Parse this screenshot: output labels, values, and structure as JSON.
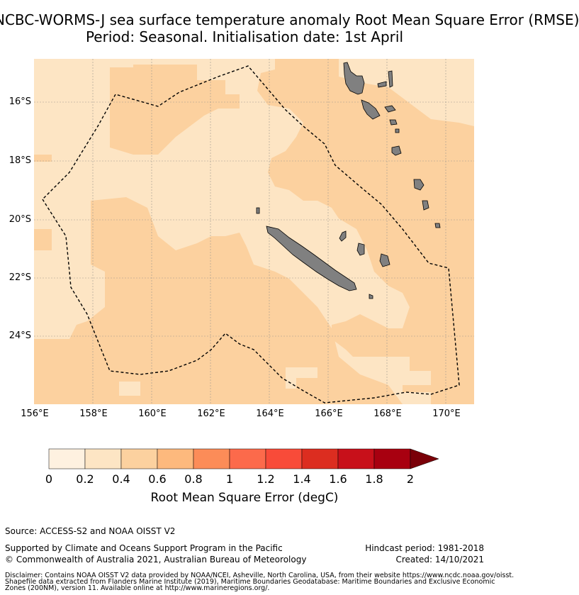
{
  "title_line1": "NCBC-WORMS-J sea surface temperature anomaly Root Mean Square Error (RMSE)",
  "title_line2": "Period: Seasonal. Initialisation date: 1st April",
  "map": {
    "lon_range": [
      156,
      171
    ],
    "lat_range": [
      -26.3,
      -14.5
    ],
    "lat_ticks": [
      "16°S",
      "18°S",
      "20°S",
      "22°S",
      "24°S"
    ],
    "lon_ticks": [
      "156°E",
      "158°E",
      "160°E",
      "162°E",
      "164°E",
      "166°E",
      "168°E",
      "170°E"
    ],
    "colors": {
      "land": "#808080",
      "rmse_0_2_to_0_4": "#fde5c4",
      "rmse_0_4_to_0_6": "#fcd19f",
      "boundary": "#000000"
    },
    "grid": true
  },
  "colorbar": {
    "ticks": [
      "0",
      "0.2",
      "0.4",
      "0.6",
      "0.8",
      "1",
      "1.2",
      "1.4",
      "1.6",
      "1.8",
      "2"
    ],
    "colors": [
      "#fef1e0",
      "#fde5c4",
      "#fcd19f",
      "#fdb97d",
      "#fc8c58",
      "#fc6a4b",
      "#f84b39",
      "#dc2d20",
      "#c8101a",
      "#a80010"
    ],
    "extend_color": "#7a0008",
    "label": "Root Mean Square Error (degC)"
  },
  "footer": {
    "source": "Source: ACCESS-S2 and NOAA OISST V2",
    "supported": "Supported by Climate and Oceans Support Program in the Pacific",
    "copyright": "© Commonwealth of Australia 2021, Australian Bureau of Meteorology",
    "hindcast": "Hindcast period: 1981-2018",
    "created": "Created: 14/10/2021",
    "disclaimer1": "Disclaimer: Contains NOAA OISST V2 data provided by NOAA/NCEI, Asheville, North Carolina, USA, from their website https://www.ncdc.noaa.gov/oisst.",
    "disclaimer2": "Shapefile data extracted from Flanders Marine Institute (2019), Maritime Boundaries Geodatabase: Maritime Boundaries and Exclusive Economic",
    "disclaimer3": "Zones (200NM), version 11. Available online at http://www.marineregions.org/."
  }
}
